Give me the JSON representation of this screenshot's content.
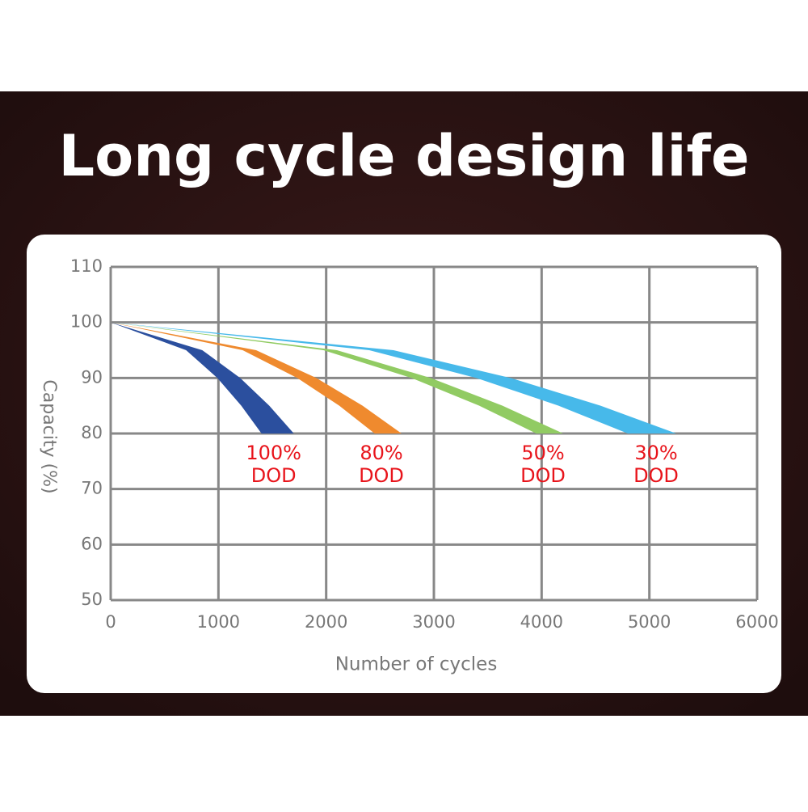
{
  "chart_data": {
    "type": "band",
    "title": "Long cycle design life",
    "x_label": "Number of cycles",
    "y_label": "Capacity (%)",
    "xlim": [
      0,
      6000
    ],
    "xticks": [
      0,
      1000,
      2000,
      3000,
      4000,
      5000,
      6000
    ],
    "ylim": [
      50,
      110
    ],
    "yticks": [
      50,
      60,
      70,
      80,
      90,
      100,
      110
    ],
    "grid": true,
    "series": [
      {
        "label": [
          "100%",
          "DOD"
        ],
        "color": "#2b4f9e",
        "values": [
          100,
          95,
          90,
          85,
          80
        ],
        "x_inner": [
          0,
          700,
          990,
          1212,
          1400
        ],
        "x_outer": [
          0,
          850,
          1202,
          1472,
          1700
        ]
      },
      {
        "label": [
          "80%",
          "DOD"
        ],
        "color": "#ef8a2e",
        "values": [
          100,
          95,
          90,
          85,
          80
        ],
        "x_inner": [
          0,
          1225,
          1732,
          2122,
          2450
        ],
        "x_outer": [
          0,
          1350,
          1909,
          2338,
          2700
        ]
      },
      {
        "label": [
          "50%",
          "DOD"
        ],
        "color": "#91cb63",
        "values": [
          100,
          95,
          90,
          85,
          80
        ],
        "x_inner": [
          0,
          1975,
          2793,
          3421,
          3950
        ],
        "x_outer": [
          0,
          2100,
          2970,
          3637,
          4200
        ]
      },
      {
        "label": [
          "30%",
          "DOD"
        ],
        "color": "#47b9ea",
        "values": [
          100,
          95,
          90,
          85,
          80
        ],
        "x_inner": [
          0,
          2400,
          3394,
          4157,
          4800
        ],
        "x_outer": [
          0,
          2625,
          3712,
          4547,
          5250
        ]
      }
    ]
  }
}
